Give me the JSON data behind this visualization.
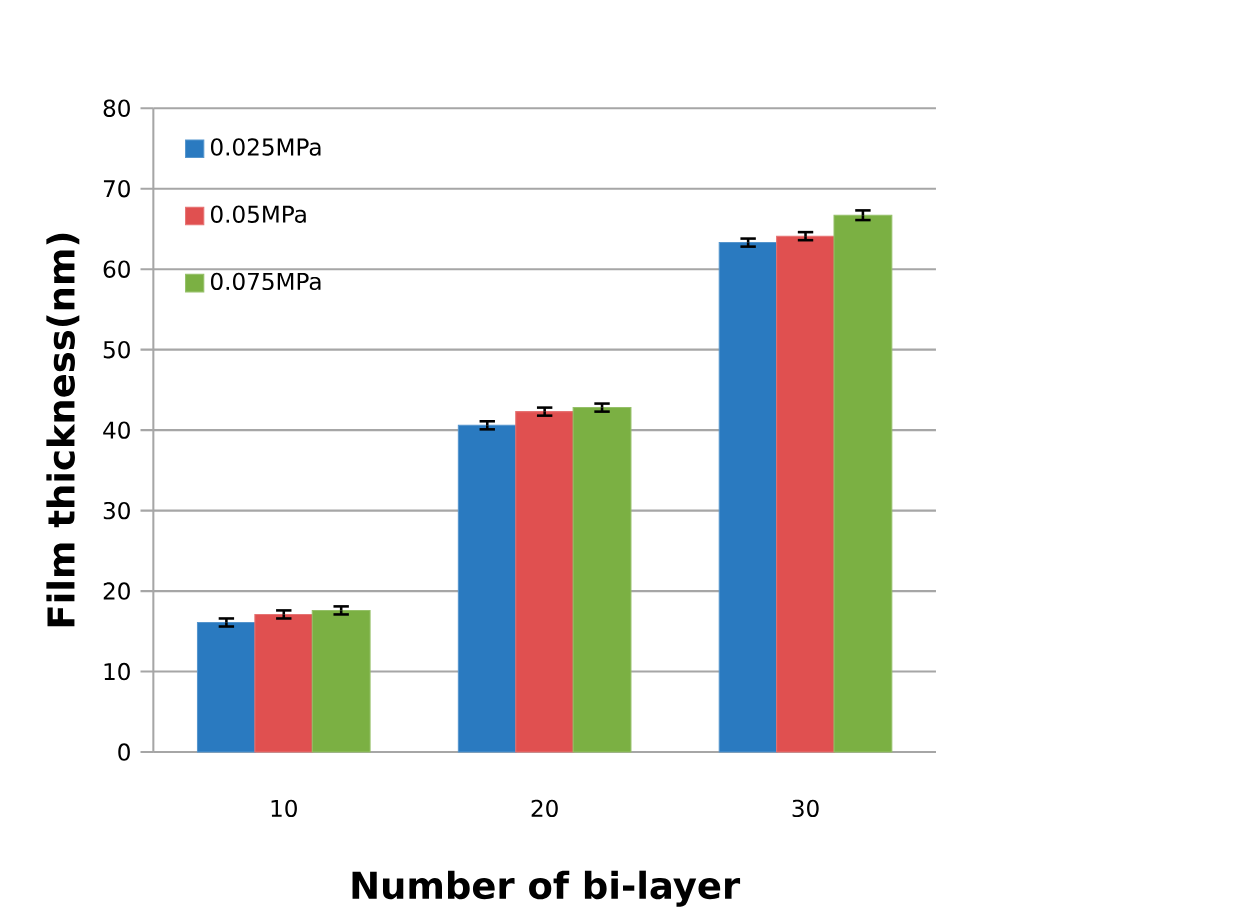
{
  "chart_data": {
    "type": "bar",
    "xlabel": "Number of bi-layer",
    "ylabel": "Film thickness(nm)",
    "categories": [
      "10",
      "20",
      "30"
    ],
    "series": [
      {
        "name": "0.025MPa",
        "color": "#2a7ac0",
        "values": [
          16.1,
          40.6,
          63.3
        ],
        "errors": [
          0.5,
          0.5,
          0.5
        ]
      },
      {
        "name": "0.05MPa",
        "color": "#e05050",
        "values": [
          17.1,
          42.3,
          64.1
        ],
        "errors": [
          0.5,
          0.5,
          0.5
        ]
      },
      {
        "name": "0.075MPa",
        "color": "#7bb043",
        "values": [
          17.6,
          42.8,
          66.7
        ],
        "errors": [
          0.5,
          0.5,
          0.6
        ]
      }
    ],
    "ylim": [
      0,
      80
    ],
    "yticks": [
      0,
      10,
      20,
      30,
      40,
      50,
      60,
      70,
      80
    ],
    "grid": "y",
    "legend": "top left"
  }
}
